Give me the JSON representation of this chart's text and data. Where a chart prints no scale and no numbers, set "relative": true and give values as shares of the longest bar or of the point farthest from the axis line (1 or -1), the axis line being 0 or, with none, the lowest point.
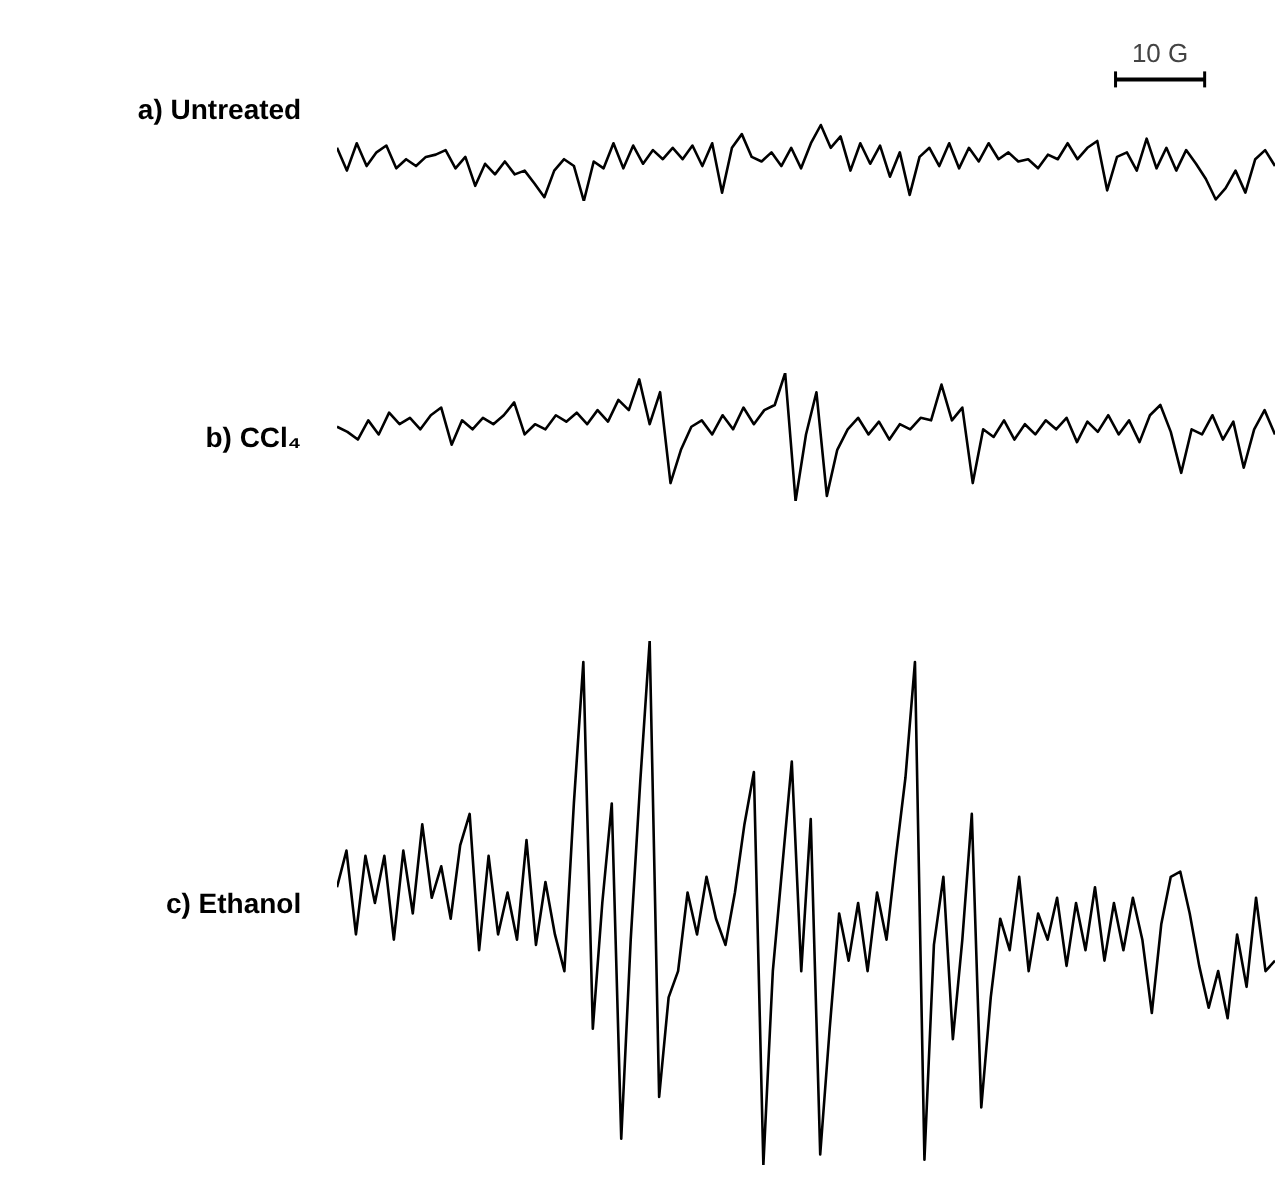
{
  "chart_data": [
    {
      "type": "line",
      "relative": true,
      "title": "a)  Untreated",
      "color": "#000000",
      "annotations": [
        "10 G"
      ],
      "categories": [
        null,
        null,
        null,
        null,
        null,
        null,
        null,
        null,
        null,
        null,
        null,
        null,
        null,
        null,
        null,
        null,
        null,
        null,
        null,
        null,
        null,
        null,
        null,
        null,
        null,
        null,
        null,
        null,
        null,
        null,
        null,
        null,
        null,
        null,
        null,
        null,
        null,
        null,
        null,
        null,
        null,
        null,
        null,
        null,
        null,
        null,
        null,
        null,
        null,
        null,
        null,
        null,
        null,
        null,
        null,
        null,
        null,
        null,
        null,
        null,
        null,
        null,
        null,
        null,
        null,
        null,
        null,
        null,
        null,
        null,
        null,
        null,
        null,
        null,
        null,
        null,
        null,
        null,
        null,
        null,
        null,
        null,
        null,
        null,
        null,
        null,
        null,
        null,
        null,
        null,
        null,
        null,
        null,
        null,
        null,
        null
      ],
      "values": [
        0.7,
        0.4,
        0.76,
        0.46,
        0.64,
        0.73,
        0.43,
        0.55,
        0.46,
        0.58,
        0.61,
        0.67,
        0.43,
        0.58,
        0.2,
        0.49,
        0.35,
        0.52,
        0.35,
        0.4,
        0.23,
        0.05,
        0.4,
        0.55,
        0.46,
        0.0,
        0.52,
        0.43,
        0.76,
        0.43,
        0.73,
        0.49,
        0.67,
        0.55,
        0.7,
        0.55,
        0.73,
        0.46,
        0.76,
        0.11,
        0.7,
        0.88,
        0.58,
        0.52,
        0.64,
        0.46,
        0.7,
        0.43,
        0.76,
        1.0,
        0.7,
        0.85,
        0.4,
        0.76,
        0.49,
        0.73,
        0.32,
        0.64,
        0.08,
        0.58,
        0.7,
        0.46,
        0.76,
        0.43,
        0.7,
        0.52,
        0.76,
        0.55,
        0.64,
        0.52,
        0.55,
        0.43,
        0.61,
        0.55,
        0.76,
        0.55,
        0.7,
        0.79,
        0.14,
        0.58,
        0.64,
        0.4,
        0.82,
        0.43,
        0.7,
        0.4,
        0.67,
        0.49,
        0.29,
        0.02,
        0.17,
        0.4,
        0.11,
        0.55,
        0.67,
        0.46
      ]
    },
    {
      "type": "line",
      "relative": true,
      "title": "b)  CCl₄",
      "color": "#000000",
      "categories": [
        null,
        null,
        null,
        null,
        null,
        null,
        null,
        null,
        null,
        null,
        null,
        null,
        null,
        null,
        null,
        null,
        null,
        null,
        null,
        null,
        null,
        null,
        null,
        null,
        null,
        null,
        null,
        null,
        null,
        null,
        null,
        null,
        null,
        null,
        null,
        null,
        null,
        null,
        null,
        null,
        null,
        null,
        null,
        null,
        null,
        null,
        null,
        null,
        null,
        null,
        null,
        null,
        null,
        null,
        null,
        null,
        null,
        null,
        null,
        null,
        null,
        null,
        null,
        null,
        null,
        null,
        null,
        null,
        null,
        null,
        null,
        null,
        null,
        null,
        null,
        null,
        null,
        null,
        null,
        null,
        null,
        null,
        null,
        null,
        null,
        null,
        null,
        null,
        null,
        null,
        null
      ],
      "values": [
        0.58,
        0.54,
        0.48,
        0.63,
        0.52,
        0.69,
        0.6,
        0.65,
        0.56,
        0.67,
        0.73,
        0.44,
        0.63,
        0.56,
        0.65,
        0.6,
        0.67,
        0.77,
        0.52,
        0.6,
        0.56,
        0.67,
        0.62,
        0.69,
        0.6,
        0.71,
        0.62,
        0.79,
        0.71,
        0.95,
        0.6,
        0.85,
        0.14,
        0.4,
        0.58,
        0.63,
        0.52,
        0.67,
        0.56,
        0.73,
        0.6,
        0.71,
        0.75,
        1.0,
        0.0,
        0.52,
        0.85,
        0.04,
        0.4,
        0.56,
        0.65,
        0.52,
        0.62,
        0.48,
        0.6,
        0.56,
        0.65,
        0.63,
        0.91,
        0.63,
        0.73,
        0.14,
        0.56,
        0.5,
        0.63,
        0.48,
        0.6,
        0.52,
        0.63,
        0.56,
        0.65,
        0.46,
        0.62,
        0.54,
        0.67,
        0.52,
        0.63,
        0.46,
        0.67,
        0.75,
        0.54,
        0.22,
        0.56,
        0.52,
        0.67,
        0.48,
        0.62,
        0.26,
        0.56,
        0.71,
        0.52
      ]
    },
    {
      "type": "line",
      "relative": true,
      "title": "c)  Ethanol",
      "color": "#000000",
      "categories": [
        null,
        null,
        null,
        null,
        null,
        null,
        null,
        null,
        null,
        null,
        null,
        null,
        null,
        null,
        null,
        null,
        null,
        null,
        null,
        null,
        null,
        null,
        null,
        null,
        null,
        null,
        null,
        null,
        null,
        null,
        null,
        null,
        null,
        null,
        null,
        null,
        null,
        null,
        null,
        null,
        null,
        null,
        null,
        null,
        null,
        null,
        null,
        null,
        null,
        null,
        null,
        null,
        null,
        null,
        null,
        null,
        null,
        null,
        null,
        null,
        null,
        null,
        null,
        null,
        null,
        null,
        null,
        null,
        null,
        null,
        null,
        null,
        null,
        null,
        null,
        null,
        null,
        null,
        null,
        null,
        null,
        null,
        null,
        null,
        null,
        null,
        null,
        null,
        null,
        null,
        null,
        null,
        null,
        null,
        null,
        null,
        null,
        null,
        null,
        null
      ],
      "values": [
        0.53,
        0.6,
        0.44,
        0.59,
        0.5,
        0.59,
        0.43,
        0.6,
        0.48,
        0.65,
        0.51,
        0.57,
        0.47,
        0.61,
        0.67,
        0.41,
        0.59,
        0.44,
        0.52,
        0.43,
        0.62,
        0.42,
        0.54,
        0.44,
        0.37,
        0.69,
        0.96,
        0.26,
        0.5,
        0.69,
        0.05,
        0.43,
        0.73,
        1.0,
        0.13,
        0.32,
        0.37,
        0.52,
        0.44,
        0.55,
        0.47,
        0.42,
        0.52,
        0.65,
        0.75,
        0.0,
        0.37,
        0.57,
        0.77,
        0.37,
        0.66,
        0.02,
        0.26,
        0.48,
        0.39,
        0.5,
        0.37,
        0.52,
        0.43,
        0.59,
        0.74,
        0.96,
        0.01,
        0.42,
        0.55,
        0.24,
        0.43,
        0.67,
        0.11,
        0.32,
        0.47,
        0.41,
        0.55,
        0.37,
        0.48,
        0.43,
        0.51,
        0.38,
        0.5,
        0.41,
        0.53,
        0.39,
        0.5,
        0.41,
        0.51,
        0.43,
        0.29,
        0.46,
        0.55,
        0.56,
        0.48,
        0.38,
        0.3,
        0.37,
        0.28,
        0.44,
        0.34,
        0.51,
        0.37,
        0.39
      ]
    }
  ]
}
